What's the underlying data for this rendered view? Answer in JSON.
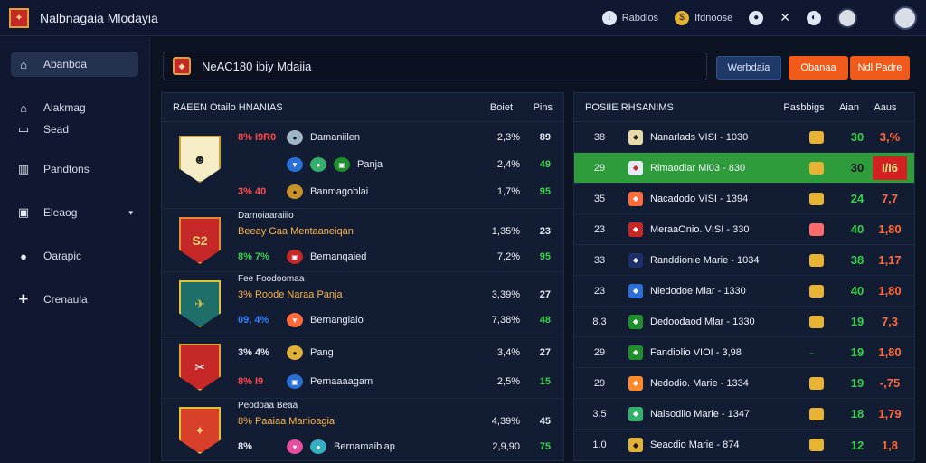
{
  "app": {
    "title": "Nalbnagaia Mlodayia"
  },
  "topbar": {
    "chip1": "Rabdlos",
    "chip2": "Ifdnoose"
  },
  "sidebar": {
    "items": [
      {
        "label": "Abanboa",
        "icon": "home-icon"
      },
      {
        "label": "Alakmag",
        "icon": "home-icon"
      },
      {
        "label": "Sead",
        "icon": "car-icon"
      },
      {
        "label": "Pandtons",
        "icon": "chart-icon"
      },
      {
        "label": "Eleaog",
        "icon": "gamepad-icon"
      },
      {
        "label": "Oarapic",
        "icon": "user-icon"
      },
      {
        "label": "Crenaula",
        "icon": "puzzle-icon"
      }
    ]
  },
  "search": {
    "value": "NeAC180 ibiy Mdaiia"
  },
  "buttons": {
    "b1": "Werbdaia",
    "b2": "Obanaa",
    "b3": "Ndl Padre"
  },
  "left_panel": {
    "title": "RAEEN Otailo HNANIAS",
    "col1": "Boiet",
    "col2": "Pins",
    "groups": [
      {
        "rows": [
          {
            "odds": "8% I9R0",
            "name": "Damaniilen",
            "pct": "2,3%",
            "pts": "89"
          },
          {
            "odds": "",
            "name": "Panja",
            "pct": "2,4%",
            "pts": "49"
          },
          {
            "odds": "3% 40",
            "name": "Banmagoblai",
            "pct": "1,7%",
            "pts": "95"
          }
        ]
      },
      {
        "sub_title": "Darnoiaaraiiio",
        "sub_line": "Beeay Gaa Mentaaneiqan",
        "rows": [
          {
            "odds": "",
            "name": "",
            "pct": "1,35%",
            "pts": "23"
          },
          {
            "odds": "8% 7%",
            "name": "Bernanqaied",
            "pct": "7,2%",
            "pts": "95"
          }
        ]
      },
      {
        "sub_title": "Fee Foodoomaa",
        "sub_line": "3% Roode Naraa Panja",
        "rows": [
          {
            "odds": "",
            "name": "",
            "pct": "3,39%",
            "pts": "27"
          },
          {
            "odds": "09, 4%",
            "name": "Bernangiaio",
            "pct": "7,38%",
            "pts": "48"
          }
        ]
      },
      {
        "rows": [
          {
            "odds": "3% 4%",
            "name": "Pang",
            "pct": "3,4%",
            "pts": "27"
          },
          {
            "odds": "8% I9",
            "name": "Pernaaaagam",
            "pct": "2,5%",
            "pts": "15"
          }
        ]
      },
      {
        "sub_title": "Peodoaa Beaa",
        "sub_line": "8% Paaiaa Manioagia",
        "rows": [
          {
            "odds": "",
            "name": "",
            "pct": "4,39%",
            "pts": "45"
          },
          {
            "odds": "8% ",
            "name": "Bernamaibiap",
            "pct": "2,9,90",
            "pts": "75"
          }
        ]
      }
    ]
  },
  "right_panel": {
    "title": "POSIIE RHSANIMS",
    "col1": "Pasbbigs",
    "col2": "Aian",
    "col3": "Aaus",
    "rows": [
      {
        "rank": "38",
        "name": "Nanarlads VISI - 1030",
        "v1": "30",
        "v2": "3,%"
      },
      {
        "rank": "29",
        "name": "Rimaodiar Mi03 - 830",
        "v1": "30",
        "v2": "I/I6"
      },
      {
        "rank": "35",
        "name": "Nacadodo VISI - 1394",
        "v1": "24",
        "v2": "7,7"
      },
      {
        "rank": "23",
        "name": "MeraaOnio. VISI - 330",
        "v1": "40",
        "v2": "1,80"
      },
      {
        "rank": "33",
        "name": "Randdionie Marie - 1034",
        "v1": "38",
        "v2": "1,17"
      },
      {
        "rank": "23",
        "name": "Niedodoe Mlar - 1330",
        "v1": "40",
        "v2": "1,80"
      },
      {
        "rank": "8.3",
        "name": "Dedoodaod Mlar - 1330",
        "v1": "19",
        "v2": "7,3"
      },
      {
        "rank": "29",
        "name": "Fandiolio VIOI - 3,98",
        "v1": "19",
        "v2": "1,80"
      },
      {
        "rank": "29",
        "name": "Nedodio. Marie - 1334",
        "v1": "19",
        "v2": "-,75"
      },
      {
        "rank": "3.5",
        "name": "Nalsodiio Marie - 1347",
        "v1": "18",
        "v2": "1,79"
      },
      {
        "rank": "1.0",
        "name": "Seacdio Marie - 874",
        "v1": "12",
        "v2": "1,8"
      }
    ]
  }
}
